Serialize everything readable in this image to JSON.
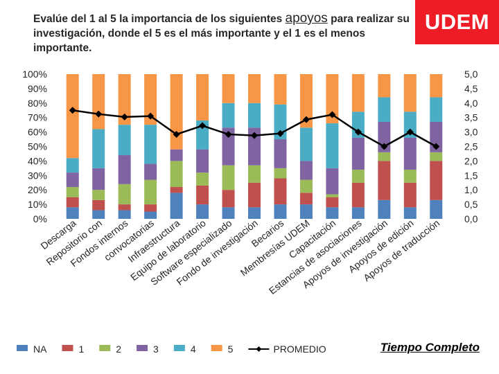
{
  "title": {
    "before": "Evalúe del 1 al 5 la importancia de los siguientes ",
    "highlight": "apoyos",
    "after": " para realizar su investigación, donde el 5 es el más importante y el 1 es el menos importante."
  },
  "logo_text": "UDEM",
  "footer_note": "Tiempo Completo",
  "chart_data": {
    "type": "bar",
    "stacked": true,
    "percent_stacked": true,
    "categories": [
      "Descarga",
      "Repositorio con",
      "Fondos internos",
      "convocatorias",
      "Infraestructura",
      "Equipo de laboratorio",
      "Software especializado",
      "Fondo de investigación",
      "Becarios",
      "Membresías UDEM",
      "Capacitación",
      "Estancias de asociaciones",
      "Apoyos de investigación",
      "Apoyos de edición",
      "Apoyos de traducción"
    ],
    "category_labels": [
      "Descarga",
      "Repositorio con",
      "Fondos internos",
      "convocatorias",
      "Infraestructura",
      "Equipo de laboratorio",
      "Software especializado",
      "Fondo de investigación",
      "Becarios",
      "Membresías UDEM",
      "Capacitación",
      "Estancias de asociaciones",
      "Apoyos de investigación",
      "Apoyos de edición",
      "Apoyos de traducción"
    ],
    "series": [
      {
        "name": "NA",
        "color": "#4f81bd",
        "values": [
          8,
          6,
          6,
          5,
          18,
          10,
          8,
          8,
          10,
          10,
          8,
          8,
          13,
          8,
          13
        ]
      },
      {
        "name": "1",
        "color": "#c0504d",
        "values": [
          7,
          7,
          4,
          5,
          4,
          13,
          12,
          17,
          18,
          8,
          7,
          17,
          27,
          17,
          27
        ]
      },
      {
        "name": "2",
        "color": "#9bbb59",
        "values": [
          7,
          7,
          14,
          17,
          18,
          9,
          17,
          12,
          7,
          9,
          2,
          9,
          6,
          9,
          6
        ]
      },
      {
        "name": "3",
        "color": "#8064a2",
        "values": [
          10,
          15,
          20,
          11,
          8,
          16,
          26,
          26,
          20,
          13,
          18,
          22,
          21,
          22,
          21
        ]
      },
      {
        "name": "4",
        "color": "#4bacc6",
        "values": [
          10,
          27,
          21,
          27,
          0,
          20,
          17,
          17,
          24,
          23,
          31,
          18,
          17,
          18,
          17
        ]
      },
      {
        "name": "5",
        "color": "#f79646",
        "values": [
          58,
          38,
          35,
          35,
          52,
          32,
          20,
          20,
          21,
          37,
          34,
          26,
          16,
          26,
          16
        ]
      }
    ],
    "line": {
      "name": "PROMEDIO",
      "color": "#000000",
      "axis": "right",
      "values": [
        3.75,
        3.62,
        3.52,
        3.55,
        2.92,
        3.22,
        2.92,
        2.88,
        2.95,
        3.43,
        3.6,
        3.0,
        2.5,
        3.0,
        2.5
      ]
    },
    "left_axis": {
      "min": 0,
      "max": 100,
      "ticks": [
        "0%",
        "10%",
        "20%",
        "30%",
        "40%",
        "50%",
        "60%",
        "70%",
        "80%",
        "90%",
        "100%"
      ]
    },
    "right_axis": {
      "min": 0,
      "max": 5,
      "ticks": [
        "0,0",
        "0,5",
        "1,0",
        "1,5",
        "2,0",
        "2,5",
        "3,0",
        "3,5",
        "4,0",
        "4,5",
        "5,0"
      ]
    },
    "legend": {
      "placement": "bottom",
      "items": [
        "NA",
        "1",
        "2",
        "3",
        "4",
        "5",
        "PROMEDIO"
      ]
    }
  }
}
